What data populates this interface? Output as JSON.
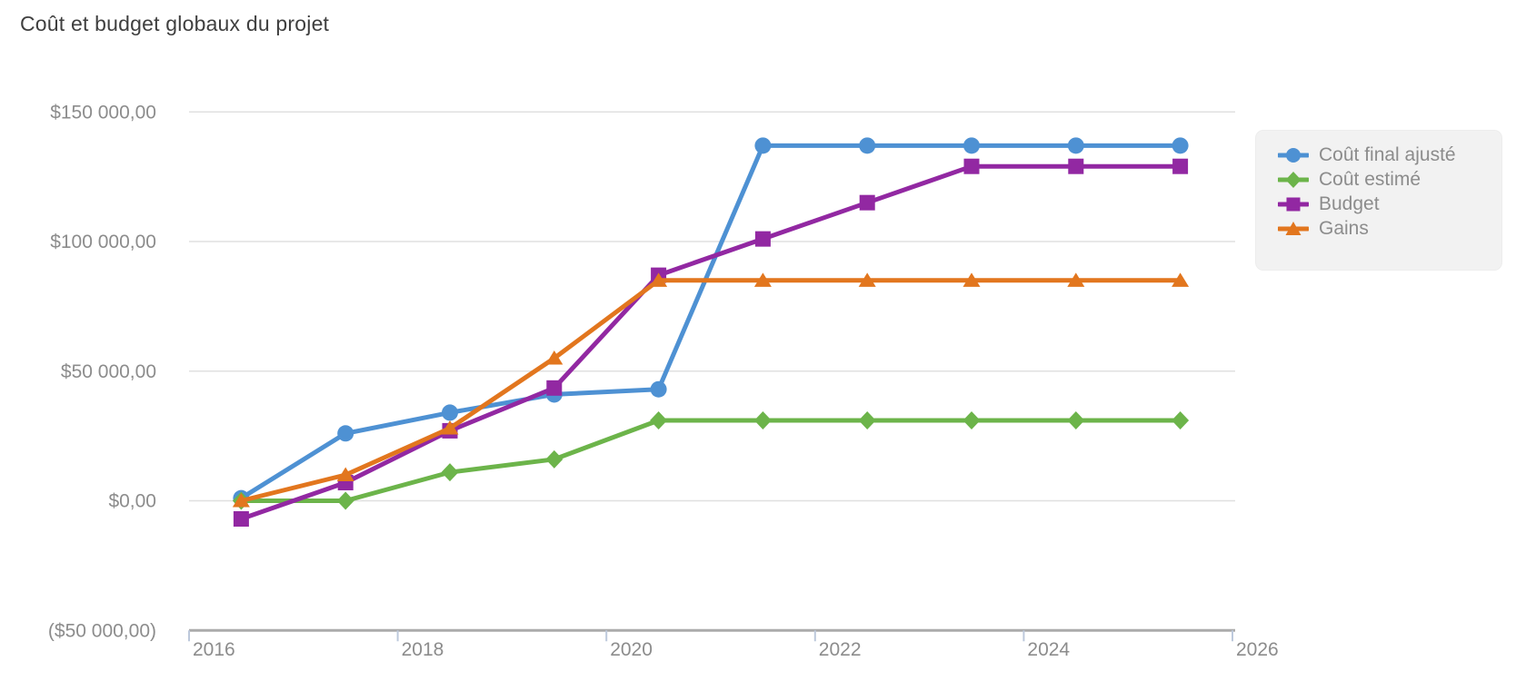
{
  "chart_data": {
    "type": "line",
    "title": "Coût et budget globaux du projet",
    "xlabel": "",
    "ylabel": "",
    "xlim": [
      2016,
      2026
    ],
    "ylim": [
      -50000,
      150000
    ],
    "grid": "horizontal-only",
    "legend_position": "right",
    "x_ticks": [
      2016,
      2018,
      2020,
      2022,
      2024,
      2026
    ],
    "x_tick_labels": [
      "2016",
      "2018",
      "2020",
      "2022",
      "2024",
      "2026"
    ],
    "y_ticks": [
      150000,
      100000,
      50000,
      0,
      -50000
    ],
    "y_tick_labels": [
      "$150 000,00",
      "$100 000,00",
      "$50 000,00",
      "$0,00",
      "($50 000,00)"
    ],
    "x": [
      2016.5,
      2017.5,
      2018.5,
      2019.5,
      2020.5,
      2021.5,
      2022.5,
      2023.5,
      2024.5,
      2025.5
    ],
    "series": [
      {
        "name": "Coût final ajusté",
        "marker": "circle",
        "color": "#4E91D3",
        "values": [
          1000,
          26000,
          34000,
          41000,
          43000,
          137000,
          137000,
          137000,
          137000,
          137000
        ]
      },
      {
        "name": "Coût estimé",
        "marker": "diamond",
        "color": "#6CB44A",
        "values": [
          0,
          0,
          11000,
          16000,
          31000,
          31000,
          31000,
          31000,
          31000,
          31000
        ]
      },
      {
        "name": "Budget",
        "marker": "square",
        "color": "#9228A2",
        "values": [
          -7000,
          7000,
          27000,
          43500,
          87000,
          101000,
          115000,
          129000,
          129000,
          129000
        ]
      },
      {
        "name": "Gains",
        "marker": "triangle",
        "color": "#E2761E",
        "values": [
          0,
          10000,
          28000,
          55000,
          85000,
          85000,
          85000,
          85000,
          85000,
          85000
        ]
      }
    ],
    "colors": {
      "title_text": "#3F3F3F",
      "gridline": "#E0E0E0",
      "axis_line": "#ABABAB",
      "tick_mark": "#BDC9DC",
      "tick_label": "#8C8C8C",
      "legend_background": "#F2F2F2",
      "legend_border": "#EDEDED",
      "legend_text": "#8C8C8C"
    }
  }
}
